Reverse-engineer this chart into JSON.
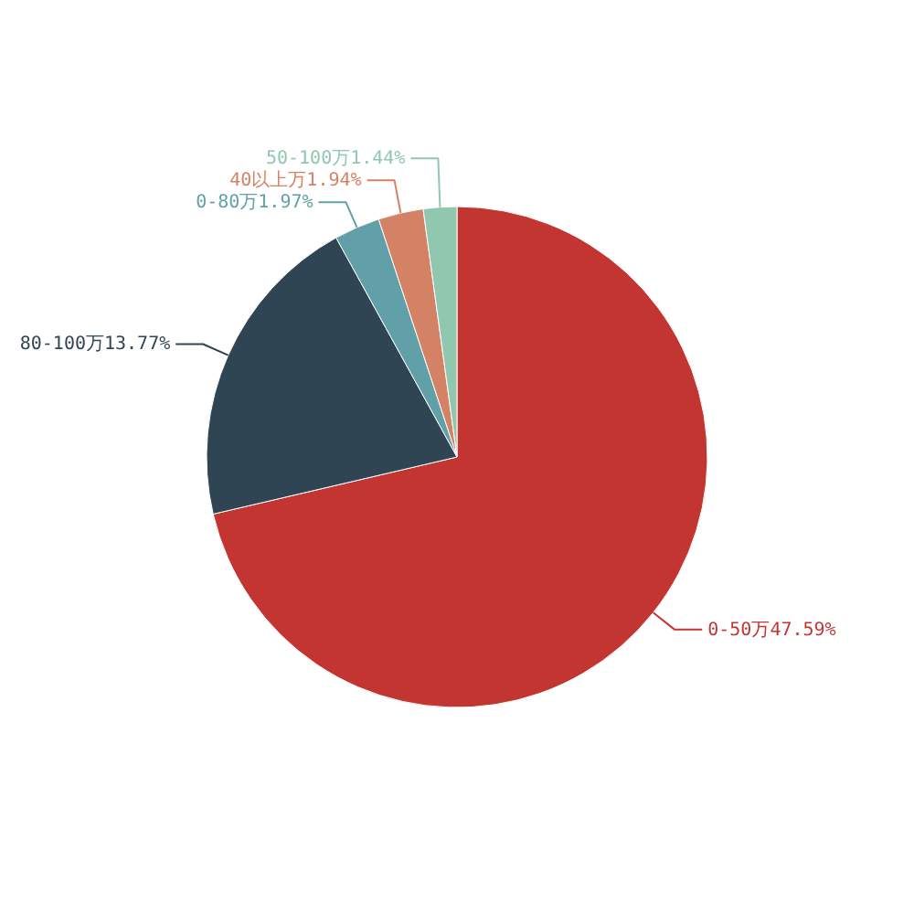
{
  "chart_data": {
    "type": "pie",
    "categories": [
      "0-50万",
      "80-100万",
      "0-80万",
      "40以上万",
      "50-100万"
    ],
    "values": [
      47.59,
      13.77,
      1.97,
      1.94,
      1.44
    ],
    "value_labels": [
      "47.59%",
      "13.77%",
      "1.97%",
      "1.94%",
      "1.44%"
    ],
    "colors": [
      "#c23531",
      "#2f4554",
      "#61a0a8",
      "#d48265",
      "#91c7ae"
    ]
  }
}
